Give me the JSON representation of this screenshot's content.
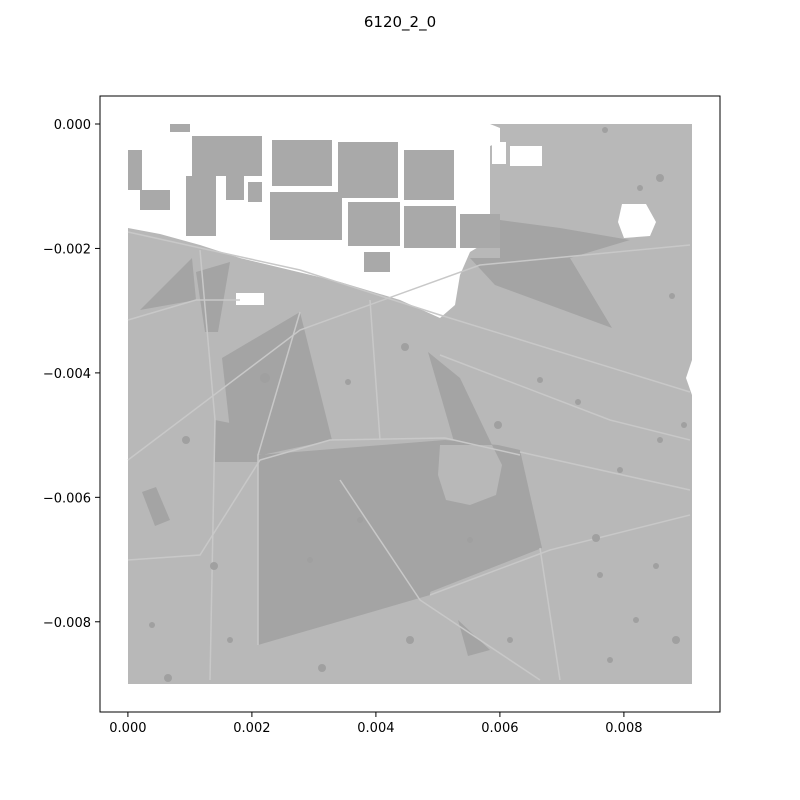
{
  "title": "6120_2_0",
  "axes": {
    "x_ticks": [
      {
        "value": 0.0,
        "label": "0.000"
      },
      {
        "value": 0.002,
        "label": "0.002"
      },
      {
        "value": 0.004,
        "label": "0.004"
      },
      {
        "value": 0.006,
        "label": "0.006"
      },
      {
        "value": 0.008,
        "label": "0.008"
      }
    ],
    "y_ticks": [
      {
        "value": 0.0,
        "label": "0.000"
      },
      {
        "value": -0.002,
        "label": "−0.002"
      },
      {
        "value": -0.004,
        "label": "−0.004"
      },
      {
        "value": -0.006,
        "label": "−0.006"
      },
      {
        "value": -0.008,
        "label": "−0.008"
      }
    ],
    "xlim": [
      -0.00045,
      0.00955
    ],
    "ylim": [
      -0.00945,
      0.00045
    ]
  },
  "map": {
    "extent": {
      "x": [
        0.0,
        0.0092
      ],
      "y": [
        -0.009,
        0.0
      ]
    },
    "colors": {
      "land": "#b8b8b8",
      "vegetation": "#a4a4a4",
      "buildings": "#a9a9a9",
      "open_area": "#ffffff",
      "paths": "#c8c8c8"
    }
  }
}
